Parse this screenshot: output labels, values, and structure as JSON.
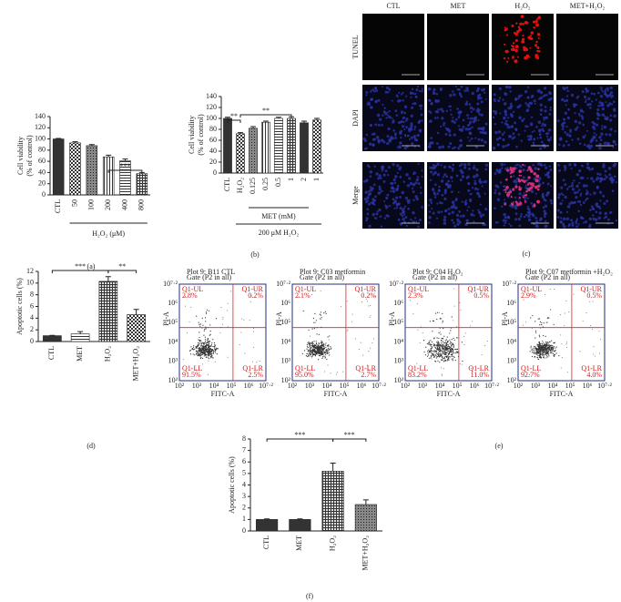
{
  "chart_data": [
    {
      "type": "bar",
      "panel": "(a)",
      "ylabel": [
        "Cell viability",
        "(% of control)"
      ],
      "xlabel": "H₂O₂ (μM)",
      "categories": [
        "CTL",
        "50",
        "100",
        "200",
        "400",
        "800"
      ],
      "values": [
        100,
        93,
        88,
        68,
        61,
        38
      ],
      "errors": [
        1,
        2,
        2,
        3,
        3,
        2
      ],
      "ylim": [
        0,
        140
      ],
      "yticks": [
        0,
        20,
        40,
        60,
        80,
        100,
        120,
        140
      ],
      "annotations": [
        "***"
      ],
      "patterns": [
        "solid",
        "check",
        "dense",
        "vline",
        "hline",
        "grid"
      ],
      "color": "#333333"
    },
    {
      "type": "bar",
      "panel": "(b)",
      "ylabel": [
        "Cell viability",
        "(% of control)"
      ],
      "groups": [
        "MET (mM)",
        "200 μM H₂O₂"
      ],
      "categories": [
        "CTL",
        "H₂O₂",
        "0.125",
        "0.25",
        "0.5",
        "1",
        "2",
        "1"
      ],
      "values": [
        100,
        72,
        82,
        93,
        100,
        100,
        92,
        97
      ],
      "errors": [
        2,
        2,
        3,
        2,
        2,
        3,
        3,
        3
      ],
      "ylim": [
        0,
        140
      ],
      "yticks": [
        0,
        20,
        40,
        60,
        80,
        100,
        120,
        140
      ],
      "annotations": [
        "**",
        "**"
      ],
      "patterns": [
        "solid",
        "check",
        "dense",
        "vline",
        "hline",
        "grid",
        "solid",
        "check"
      ],
      "color": "#333333"
    },
    {
      "type": "bar",
      "panel": "(d)",
      "ylabel": [
        "Apoptotic cells (%)"
      ],
      "categories": [
        "CTL",
        "MET",
        "H₂O₂",
        "MET+H₂O₂"
      ],
      "values": [
        1,
        1.3,
        10.3,
        4.6
      ],
      "errors": [
        0.05,
        0.4,
        0.8,
        0.9
      ],
      "ylim": [
        0,
        12
      ],
      "yticks": [
        0,
        2,
        4,
        6,
        8,
        10,
        12
      ],
      "annotations": [
        "***",
        "**"
      ],
      "patterns": [
        "solid",
        "hline",
        "grid",
        "check"
      ],
      "color": "#333333"
    },
    {
      "type": "bar",
      "panel": "(f)",
      "ylabel": [
        "Apoptotic cells (%)"
      ],
      "categories": [
        "CTL",
        "MET",
        "H₂O₂",
        "MET+H₂O₂"
      ],
      "values": [
        1,
        1,
        5.2,
        2.3
      ],
      "errors": [
        0.05,
        0.05,
        0.7,
        0.4
      ],
      "ylim": [
        0,
        8
      ],
      "yticks": [
        0,
        1,
        2,
        3,
        4,
        5,
        6,
        7,
        8
      ],
      "annotations": [
        "***",
        "***"
      ],
      "patterns": [
        "solid",
        "solid",
        "grid",
        "dense"
      ],
      "color": "#333333"
    }
  ],
  "micrographs": {
    "panel": "(c)",
    "columns": [
      "CTL",
      "MET",
      "H₂O₂",
      "MET+H₂O₂"
    ],
    "rows": [
      "TUNEL",
      "DAPI",
      "Merge"
    ]
  },
  "flow_cytometry": {
    "panel": "(e)",
    "xlabel": "FITC-A",
    "ylabel": "PI-A",
    "ticks": [
      "10²",
      "10³",
      "10⁴",
      "10⁵",
      "10⁶",
      "10⁷·²"
    ],
    "plots": [
      {
        "title": "Plot 9: B11 CTL",
        "gate": "Gate (P2 in all)",
        "quadrants": [
          [
            "Q1-UL",
            "2.8%"
          ],
          [
            "Q1-UR",
            "0.2%"
          ],
          [
            "Q1-LL",
            "91.5%"
          ],
          [
            "Q1-LR",
            "2.5%"
          ]
        ]
      },
      {
        "title": "Plot 9: C03 metformin",
        "gate": "Gate (P2 in all)",
        "quadrants": [
          [
            "Q1-UL",
            "2.1%"
          ],
          [
            "Q1-UR",
            "0.2%"
          ],
          [
            "Q1-LL",
            "95.0%"
          ],
          [
            "Q1-LR",
            "2.7%"
          ]
        ]
      },
      {
        "title": "Plot 9: C04 H₂O₂",
        "gate": "Gate (P2 in all)",
        "quadrants": [
          [
            "Q1-UL",
            "2.3%"
          ],
          [
            "Q1-UR",
            "0.5%"
          ],
          [
            "Q1-LL",
            "83.2%"
          ],
          [
            "Q1-LR",
            "11.0%"
          ]
        ]
      },
      {
        "title": "Plot 9: C07 metformin +H₂O₂",
        "gate": "Gate (P2 in all)",
        "quadrants": [
          [
            "Q1-UL",
            "2.9%"
          ],
          [
            "Q1-UR",
            "0.5%"
          ],
          [
            "Q1-LL",
            "92.7%"
          ],
          [
            "Q1-LR",
            "4.0%"
          ]
        ]
      }
    ]
  }
}
